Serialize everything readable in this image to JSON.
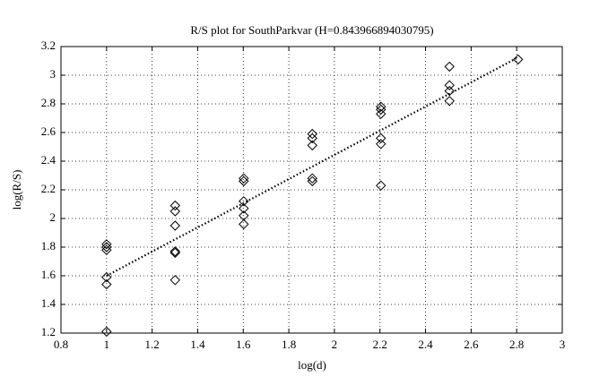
{
  "chart_data": {
    "type": "scatter",
    "title": "R/S plot for SouthParkvar (H=0.843966894030795)",
    "x_label": "log(d)",
    "y_label": "log(R/S)",
    "x": [
      1,
      1,
      1,
      1,
      1,
      1,
      1.301,
      1.301,
      1.301,
      1.301,
      1.301,
      1.301,
      1.602,
      1.602,
      1.602,
      1.602,
      1.602,
      1.602,
      1.903,
      1.903,
      1.903,
      1.903,
      1.903,
      2.204,
      2.204,
      2.204,
      2.204,
      2.204,
      2.204,
      2.505,
      2.505,
      2.505,
      2.505,
      2.806
    ],
    "values": [
      1.82,
      1.8,
      1.78,
      1.59,
      1.54,
      1.21,
      2.09,
      2.05,
      1.95,
      1.77,
      1.76,
      1.57,
      2.28,
      2.26,
      2.12,
      2.07,
      2.02,
      1.96,
      2.59,
      2.56,
      2.51,
      2.28,
      2.26,
      2.78,
      2.76,
      2.73,
      2.56,
      2.52,
      2.23,
      3.06,
      2.93,
      2.89,
      2.82,
      3.11
    ],
    "color": "#000000",
    "fit_x": [
      1,
      2.806
    ],
    "fit_values": [
      1.6,
      3.124
    ],
    "xlim": [
      0.8,
      3
    ],
    "xticks": [
      0.8,
      1,
      1.2,
      1.4,
      1.6,
      1.8,
      2,
      2.2,
      2.4,
      2.6,
      2.8,
      3
    ],
    "ylim": [
      1.2,
      3.2
    ],
    "yticks": [
      1.2,
      1.4,
      1.6,
      1.8,
      2,
      2.2,
      2.4,
      2.6,
      2.8,
      3,
      3.2
    ],
    "grid": true
  }
}
